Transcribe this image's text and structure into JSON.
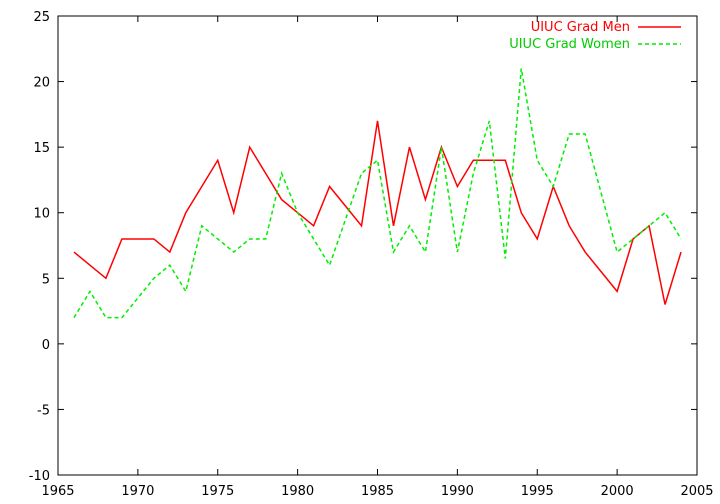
{
  "chart_data": {
    "type": "line",
    "title": "",
    "xlabel": "",
    "ylabel": "",
    "xlim": [
      1965,
      2005
    ],
    "ylim": [
      -10,
      25
    ],
    "xticks": [
      1965,
      1970,
      1975,
      1980,
      1985,
      1990,
      1995,
      2000,
      2005
    ],
    "yticks": [
      -10,
      -5,
      0,
      5,
      10,
      15,
      20,
      25
    ],
    "grid": false,
    "legend_position": "top-right",
    "series": [
      {
        "name": "UIUC Grad Men",
        "color": "#ff0000",
        "dash": "solid",
        "x": [
          1966,
          1967,
          1968,
          1969,
          1970,
          1971,
          1972,
          1973,
          1974,
          1975,
          1976,
          1977,
          1978,
          1979,
          1980,
          1981,
          1982,
          1983,
          1984,
          1985,
          1986,
          1987,
          1988,
          1989,
          1990,
          1991,
          1992,
          1993,
          1994,
          1995,
          1996,
          1997,
          1998,
          1999,
          2000,
          2001,
          2002,
          2003,
          2004
        ],
        "values": [
          7,
          6,
          5,
          8,
          8,
          8,
          7,
          10,
          12,
          14,
          10,
          15,
          13,
          11,
          10,
          9,
          12,
          10.5,
          9,
          17,
          9,
          15,
          11,
          15,
          12,
          14,
          14,
          14,
          10,
          8,
          12,
          9,
          7,
          5.5,
          4,
          8,
          9,
          3,
          7
        ]
      },
      {
        "name": "UIUC Grad Women",
        "color": "#00ee00",
        "dash": "dashed",
        "x": [
          1966,
          1967,
          1968,
          1969,
          1970,
          1971,
          1972,
          1973,
          1974,
          1975,
          1976,
          1977,
          1978,
          1979,
          1980,
          1981,
          1982,
          1983,
          1984,
          1985,
          1986,
          1987,
          1988,
          1989,
          1990,
          1991,
          1992,
          1993,
          1994,
          1995,
          1996,
          1997,
          1998,
          1999,
          2000,
          2001,
          2002,
          2003,
          2004
        ],
        "values": [
          2,
          4,
          2,
          2,
          3.5,
          5,
          6,
          4,
          9,
          8,
          7,
          8,
          8,
          13,
          10,
          8,
          6,
          9.5,
          13,
          14,
          7,
          9,
          7,
          15,
          7,
          13,
          17,
          6.5,
          21,
          14,
          12,
          16,
          16,
          11.5,
          7,
          8,
          9,
          10,
          8
        ]
      }
    ]
  }
}
